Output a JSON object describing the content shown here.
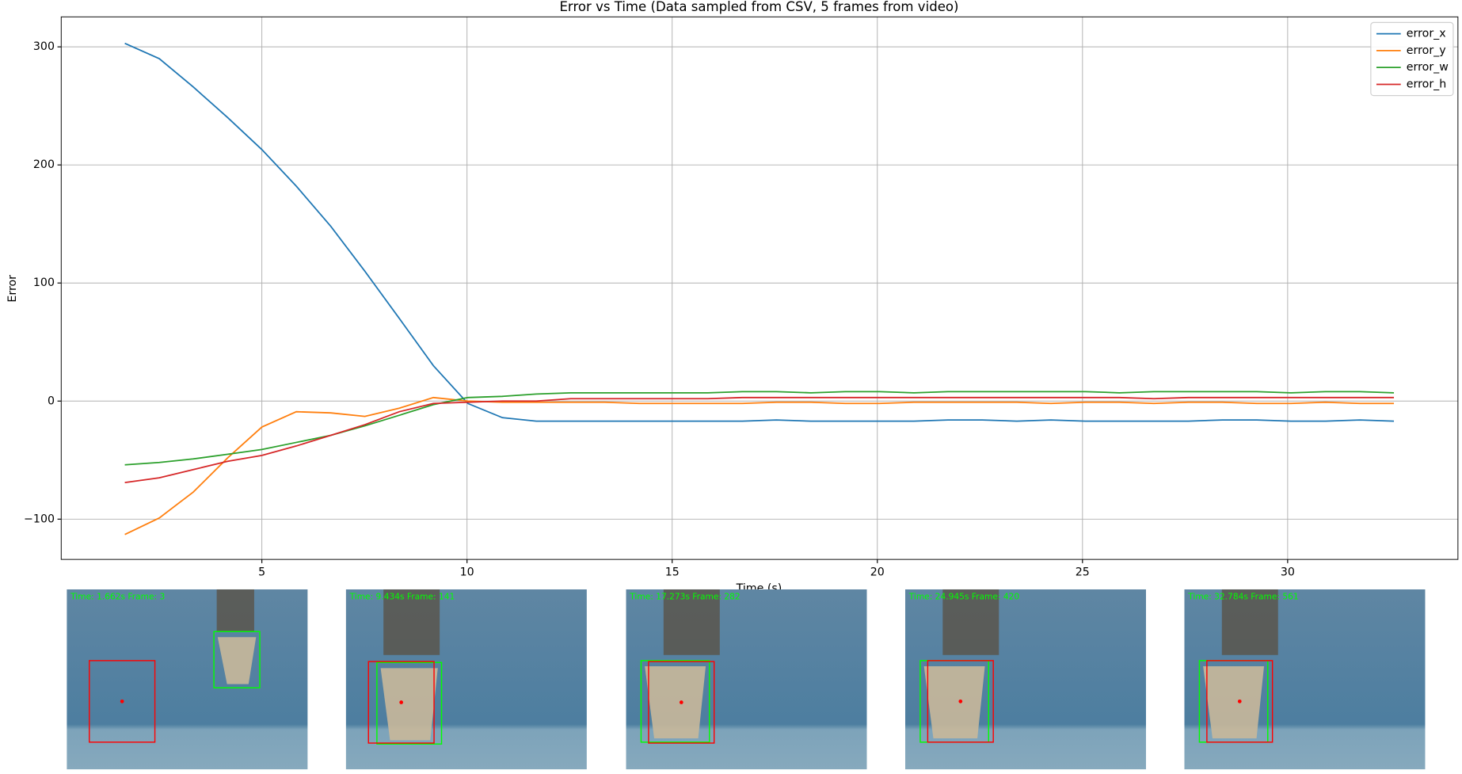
{
  "chart_data": {
    "type": "line",
    "title": "Error vs Time (Data sampled from CSV, 5 frames from video)",
    "xlabel": "Time (s)",
    "ylabel": "Error",
    "x": [
      1.66,
      2.5,
      3.33,
      4.17,
      5.0,
      5.84,
      6.68,
      7.51,
      8.35,
      9.18,
      10.02,
      10.86,
      11.69,
      12.53,
      13.36,
      14.2,
      15.04,
      15.87,
      16.71,
      17.54,
      18.38,
      19.22,
      20.05,
      20.89,
      21.72,
      22.56,
      23.4,
      24.23,
      25.07,
      25.9,
      26.74,
      27.58,
      28.41,
      29.25,
      30.08,
      30.92,
      31.76,
      32.59
    ],
    "series": [
      {
        "name": "error_x",
        "color": "#1f77b4",
        "values": [
          303,
          290,
          266,
          240,
          213,
          182,
          148,
          110,
          70,
          30,
          -2,
          -14,
          -17,
          -17,
          -17,
          -17,
          -17,
          -17,
          -17,
          -16,
          -17,
          -17,
          -17,
          -17,
          -16,
          -16,
          -17,
          -16,
          -17,
          -17,
          -17,
          -17,
          -16,
          -16,
          -17,
          -17,
          -16,
          -17
        ]
      },
      {
        "name": "error_y",
        "color": "#ff7f0e",
        "values": [
          -113,
          -99,
          -77,
          -48,
          -22,
          -9,
          -10,
          -13,
          -6,
          3,
          0,
          -1,
          -1,
          -1,
          -1,
          -2,
          -2,
          -2,
          -2,
          -1,
          -1,
          -2,
          -2,
          -1,
          -1,
          -1,
          -1,
          -2,
          -1,
          -1,
          -2,
          -1,
          -1,
          -2,
          -2,
          -1,
          -2,
          -2
        ]
      },
      {
        "name": "error_w",
        "color": "#2ca02c",
        "values": [
          -54,
          -52,
          -49,
          -45,
          -41,
          -35,
          -29,
          -21,
          -12,
          -3,
          3,
          4,
          6,
          7,
          7,
          7,
          7,
          7,
          8,
          8,
          7,
          8,
          8,
          7,
          8,
          8,
          8,
          8,
          8,
          7,
          8,
          8,
          8,
          8,
          7,
          8,
          8,
          7
        ]
      },
      {
        "name": "error_h",
        "color": "#d62728",
        "values": [
          -69,
          -65,
          -58,
          -51,
          -46,
          -38,
          -29,
          -20,
          -9,
          -2,
          -1,
          0,
          0,
          2,
          2,
          2,
          2,
          2,
          3,
          3,
          3,
          3,
          3,
          3,
          3,
          3,
          3,
          3,
          3,
          3,
          2,
          3,
          3,
          3,
          3,
          3,
          3,
          3
        ]
      }
    ],
    "xlim": [
      0.11,
      34.15
    ],
    "ylim": [
      -134.1,
      325.4
    ],
    "xticks": [
      5,
      10,
      15,
      20,
      25,
      30
    ],
    "yticks": [
      {
        "value": -100,
        "label": "−100"
      },
      0,
      100,
      200,
      300
    ],
    "grid": true,
    "legend": "upper right"
  },
  "frames": [
    {
      "label": "Time: 1.662s Frame: 3"
    },
    {
      "label": "Time: 9.434s Frame: 141"
    },
    {
      "label": "Time: 17.273s Frame: 282"
    },
    {
      "label": "Time: 24.945s Frame: 420"
    },
    {
      "label": "Time: 32.784s Frame: 561"
    }
  ]
}
